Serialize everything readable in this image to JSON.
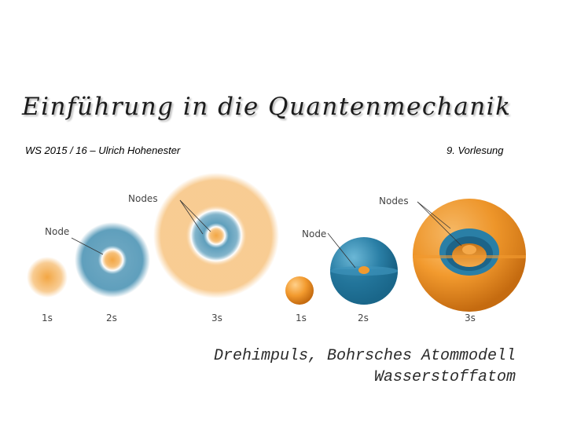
{
  "slide": {
    "title": "Einführung in die Quantenmechanik",
    "course_info": "WS 2015 / 16 – Ulrich Hohenester",
    "lecture_number": "9. Vorlesung",
    "topic_line_1": "Drehimpuls, Bohrsches Atommodell",
    "topic_line_2": "Wasserstoffatom"
  },
  "figure": {
    "label_node_left": "Node",
    "label_nodes_left": "Nodes",
    "label_node_right": "Node",
    "label_nodes_right": "Nodes",
    "orbital_1s_left": "1s",
    "orbital_2s_left": "2s",
    "orbital_3s_left": "3s",
    "orbital_1s_right": "1s",
    "orbital_2s_right": "2s",
    "orbital_3s_right": "3s",
    "colors": {
      "orange": "#f2a23a",
      "blue": "#2a7fa6"
    }
  }
}
